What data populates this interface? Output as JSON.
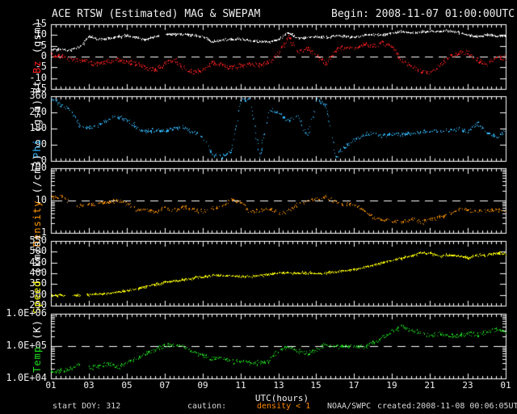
{
  "header": {
    "title": "ACE RTSW (Estimated) MAG & SWEPAM",
    "begin_label": "Begin: 2008-11-07 01:00:00UTC"
  },
  "footer": {
    "start_doy": "start DOY: 312",
    "caution": "caution:",
    "density_warning": "density < 1",
    "agency": "NOAA/SWPC",
    "created": "created:2008-11-08 00:06:05UTC"
  },
  "colors": {
    "background": "#000000",
    "axis": "#ffffff",
    "dashed_line": "#ffffff",
    "warning": "#ff8800",
    "bt": "#ffffff",
    "bz": "#ff2020",
    "phi": "#33bbff",
    "density": "#ff9500",
    "speed": "#ffff00",
    "temp": "#1ee01e"
  },
  "x_axis": {
    "title": "UTC(hours)",
    "tick_labels": [
      "01",
      "03",
      "05",
      "07",
      "09",
      "11",
      "13",
      "15",
      "17",
      "19",
      "21",
      "23",
      "01"
    ],
    "tick_hours": [
      1,
      3,
      5,
      7,
      9,
      11,
      13,
      15,
      17,
      19,
      21,
      23,
      25
    ],
    "range_hours": [
      1,
      25
    ],
    "anchor_hours": [
      1,
      1.5,
      2,
      2.5,
      3,
      3.5,
      4,
      4.5,
      5,
      5.5,
      6,
      6.5,
      7,
      7.5,
      8,
      8.5,
      9,
      9.5,
      10,
      10.5,
      11,
      11.5,
      12,
      12.5,
      13,
      13.5,
      14,
      14.5,
      15,
      15.5,
      16,
      16.5,
      17,
      17.5,
      18,
      18.5,
      19,
      19.5,
      20,
      20.5,
      21,
      21.5,
      22,
      22.5,
      23,
      23.5,
      24,
      24.5,
      25
    ]
  },
  "chart_data": [
    {
      "id": "mag",
      "type": "scatter",
      "scale": "linear",
      "ymin": -15,
      "ymax": 15,
      "dashed_at": 0,
      "label_parts": [
        {
          "text": "Bt ",
          "color": "#ffffff"
        },
        {
          "text": "Bz ",
          "color": "#ff2020"
        },
        {
          "text": "(gsm)",
          "color": "#ffffff"
        }
      ],
      "yticks": [
        {
          "value": 15,
          "label": "15"
        },
        {
          "value": 10,
          "label": "10"
        },
        {
          "value": 5,
          "label": "5"
        },
        {
          "value": 0,
          "label": "0"
        },
        {
          "value": -5,
          "label": "-5"
        },
        {
          "value": -10,
          "label": "-10"
        },
        {
          "value": -15,
          "label": "-15"
        }
      ],
      "series": [
        {
          "name": "Bt",
          "color": "#ffffff",
          "gaps": [
            [
              6.7,
              7.05
            ]
          ],
          "values": [
            3.2,
            3.5,
            3.2,
            4.5,
            9.5,
            8.2,
            8.6,
            9.2,
            9.8,
            9.0,
            8.0,
            9.6,
            10.2,
            10.6,
            10.5,
            10.0,
            9.4,
            7.0,
            7.6,
            8.2,
            8.2,
            7.6,
            7.1,
            7.0,
            8.0,
            11.5,
            8.6,
            9.0,
            9.4,
            9.0,
            9.9,
            9.5,
            9.2,
            10.1,
            10.5,
            10.2,
            11.0,
            11.8,
            11.2,
            11.5,
            11.9,
            12.0,
            12.0,
            11.4,
            10.2,
            9.2,
            10.4,
            9.6,
            10.0
          ]
        },
        {
          "name": "Bz",
          "color": "#ff2020",
          "gaps": [],
          "values": [
            0.8,
            0.2,
            -1.0,
            -2.0,
            -2.6,
            -3.4,
            -2.0,
            -1.6,
            -2.2,
            -3.0,
            -5.0,
            -6.2,
            -3.0,
            -1.5,
            -5.5,
            -7.2,
            -6.0,
            -2.5,
            -3.5,
            -5.0,
            -4.0,
            -3.2,
            -3.6,
            -2.4,
            2.0,
            9.0,
            2.2,
            3.8,
            1.0,
            -3.5,
            2.8,
            4.5,
            3.8,
            5.8,
            5.0,
            6.5,
            4.5,
            -1.5,
            -4.0,
            -6.5,
            -7.5,
            -4.0,
            0.0,
            1.8,
            2.0,
            -1.5,
            -3.5,
            0.5,
            -1.0
          ]
        }
      ]
    },
    {
      "id": "phi",
      "type": "scatter",
      "scale": "linear",
      "ymin": 0,
      "ymax": 360,
      "dashed_at": null,
      "label_parts": [
        {
          "text": "Phi ",
          "color": "#33bbff"
        },
        {
          "text": "(gsm)",
          "color": "#ffffff"
        }
      ],
      "yticks": [
        {
          "value": 360,
          "label": "360"
        },
        {
          "value": 270,
          "label": "270"
        },
        {
          "value": 180,
          "label": "180"
        },
        {
          "value": 90,
          "label": "90"
        },
        {
          "value": 0,
          "label": "0"
        }
      ],
      "series": [
        {
          "name": "Phi",
          "color": "#33bbff",
          "gaps": [],
          "values": [
            354,
            312,
            285,
            195,
            190,
            200,
            238,
            248,
            228,
            185,
            168,
            172,
            170,
            182,
            190,
            160,
            140,
            35,
            25,
            55,
            340,
            350,
            25,
            295,
            270,
            225,
            250,
            135,
            350,
            310,
            30,
            80,
            120,
            148,
            155,
            140,
            152,
            148,
            158,
            162,
            170,
            165,
            172,
            178,
            162,
            210,
            160,
            130,
            172
          ]
        }
      ]
    },
    {
      "id": "density",
      "type": "scatter",
      "scale": "log",
      "ymin": 1,
      "ymax": 100,
      "dashed_at": 10,
      "label_parts": [
        {
          "text": "Density ",
          "color": "#ff9500"
        },
        {
          "text": "(/cm3)",
          "color": "#ffffff"
        }
      ],
      "yticks": [
        {
          "value": 100,
          "label": "100"
        },
        {
          "value": 10,
          "label": "10"
        },
        {
          "value": 1,
          "label": "1"
        }
      ],
      "series": [
        {
          "name": "Density",
          "color": "#ff9500",
          "gaps": [
            [
              2.0,
              2.35
            ]
          ],
          "values": [
            12,
            14,
            9,
            7,
            7.5,
            8,
            9.5,
            10.5,
            8,
            5,
            5.5,
            4.5,
            6,
            5,
            6.5,
            5.5,
            4.5,
            6,
            7,
            11,
            9,
            4.5,
            5,
            6,
            4,
            5,
            7.5,
            9.5,
            12,
            13.5,
            9,
            7.5,
            8,
            5,
            3,
            2.6,
            2.4,
            2.2,
            2.8,
            2.2,
            2.6,
            3.2,
            4,
            5.5,
            5.2,
            4.6,
            5,
            5.4,
            4.6
          ]
        }
      ]
    },
    {
      "id": "speed",
      "type": "scatter",
      "scale": "linear",
      "ymin": 250,
      "ymax": 550,
      "dashed_at": null,
      "label_parts": [
        {
          "text": "Speed ",
          "color": "#ffff00"
        },
        {
          "text": "(km/s)",
          "color": "#ffffff"
        }
      ],
      "yticks": [
        {
          "value": 550,
          "label": "550"
        },
        {
          "value": 500,
          "label": "500"
        },
        {
          "value": 450,
          "label": "450"
        },
        {
          "value": 400,
          "label": "400"
        },
        {
          "value": 350,
          "label": "350"
        },
        {
          "value": 300,
          "label": "300"
        },
        {
          "value": 250,
          "label": "250"
        }
      ],
      "series": [
        {
          "name": "Speed",
          "color": "#ffff00",
          "gaps": [
            [
              1.75,
              2.15
            ],
            [
              2.55,
              2.85
            ]
          ],
          "values": [
            300,
            298,
            300,
            299,
            303,
            305,
            309,
            314,
            320,
            330,
            341,
            352,
            360,
            366,
            371,
            379,
            385,
            390,
            391,
            390,
            386,
            388,
            391,
            398,
            404,
            405,
            401,
            404,
            400,
            404,
            409,
            414,
            420,
            430,
            441,
            451,
            461,
            471,
            482,
            497,
            494,
            483,
            486,
            480,
            472,
            487,
            486,
            496,
            494
          ]
        }
      ]
    },
    {
      "id": "temp",
      "type": "scatter",
      "scale": "log",
      "ymin": 10000,
      "ymax": 1000000,
      "dashed_at": 100000,
      "label_parts": [
        {
          "text": "Temp ",
          "color": "#1ee01e"
        },
        {
          "text": "(K)",
          "color": "#ffffff"
        }
      ],
      "yticks": [
        {
          "value": 1000000,
          "label": "1.0E+06"
        },
        {
          "value": 100000,
          "label": "1.0E+05"
        },
        {
          "value": 10000,
          "label": "1.0E+04"
        }
      ],
      "series": [
        {
          "name": "Temp",
          "color": "#1ee01e",
          "gaps": [
            [
              2.55,
              3.0
            ]
          ],
          "values": [
            16000,
            18000,
            21000,
            28000,
            22000,
            25000,
            28000,
            23000,
            30000,
            42000,
            60000,
            80000,
            105000,
            110000,
            95000,
            65000,
            52000,
            42000,
            46000,
            32000,
            36000,
            30000,
            31000,
            36000,
            75000,
            100000,
            70000,
            62000,
            80000,
            115000,
            95000,
            105000,
            100000,
            95000,
            125000,
            190000,
            300000,
            400000,
            300000,
            260000,
            220000,
            250000,
            200000,
            210000,
            250000,
            220000,
            300000,
            320000,
            260000
          ]
        }
      ]
    }
  ]
}
